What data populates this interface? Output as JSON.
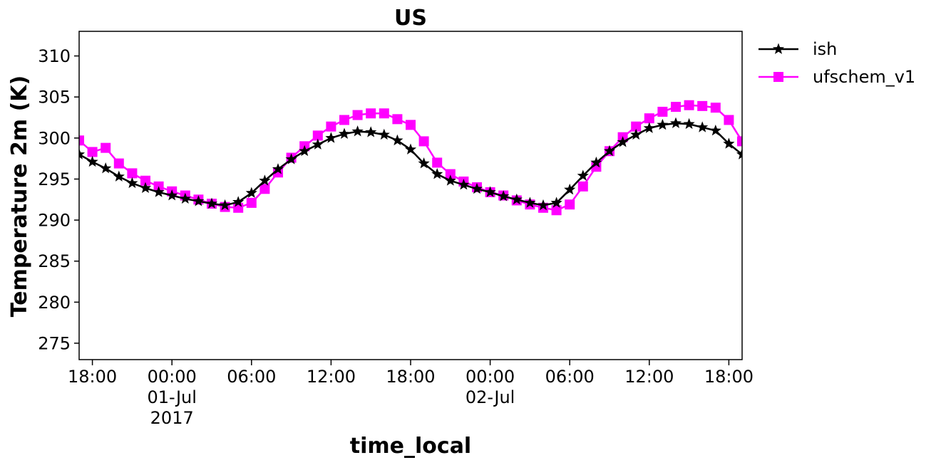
{
  "chart_data": {
    "type": "line",
    "title": "US",
    "xlabel": "time_local",
    "ylabel": "Temperature 2m (K)",
    "ylim": [
      273,
      313
    ],
    "y_ticks": [
      275,
      280,
      285,
      290,
      295,
      300,
      305,
      310
    ],
    "xlim": [
      "2017-06-30T17:00",
      "2017-07-02T19:00"
    ],
    "x_ticks": [
      {
        "time": "2017-06-30T18:00",
        "label": [
          "18:00"
        ]
      },
      {
        "time": "2017-07-01T00:00",
        "label": [
          "00:00",
          "01-Jul",
          "2017"
        ]
      },
      {
        "time": "2017-07-01T06:00",
        "label": [
          "06:00"
        ]
      },
      {
        "time": "2017-07-01T12:00",
        "label": [
          "12:00"
        ]
      },
      {
        "time": "2017-07-01T18:00",
        "label": [
          "18:00"
        ]
      },
      {
        "time": "2017-07-02T00:00",
        "label": [
          "00:00",
          "02-Jul"
        ]
      },
      {
        "time": "2017-07-02T06:00",
        "label": [
          "06:00"
        ]
      },
      {
        "time": "2017-07-02T12:00",
        "label": [
          "12:00"
        ]
      },
      {
        "time": "2017-07-02T18:00",
        "label": [
          "18:00"
        ]
      }
    ],
    "x": [
      "2017-06-30T17:00",
      "2017-06-30T18:00",
      "2017-06-30T19:00",
      "2017-06-30T20:00",
      "2017-06-30T21:00",
      "2017-06-30T22:00",
      "2017-06-30T23:00",
      "2017-07-01T00:00",
      "2017-07-01T01:00",
      "2017-07-01T02:00",
      "2017-07-01T03:00",
      "2017-07-01T04:00",
      "2017-07-01T05:00",
      "2017-07-01T06:00",
      "2017-07-01T07:00",
      "2017-07-01T08:00",
      "2017-07-01T09:00",
      "2017-07-01T10:00",
      "2017-07-01T11:00",
      "2017-07-01T12:00",
      "2017-07-01T13:00",
      "2017-07-01T14:00",
      "2017-07-01T15:00",
      "2017-07-01T16:00",
      "2017-07-01T17:00",
      "2017-07-01T18:00",
      "2017-07-01T19:00",
      "2017-07-01T20:00",
      "2017-07-01T21:00",
      "2017-07-01T22:00",
      "2017-07-01T23:00",
      "2017-07-02T00:00",
      "2017-07-02T01:00",
      "2017-07-02T02:00",
      "2017-07-02T03:00",
      "2017-07-02T04:00",
      "2017-07-02T05:00",
      "2017-07-02T06:00",
      "2017-07-02T07:00",
      "2017-07-02T08:00",
      "2017-07-02T09:00",
      "2017-07-02T10:00",
      "2017-07-02T11:00",
      "2017-07-02T12:00",
      "2017-07-02T13:00",
      "2017-07-02T14:00",
      "2017-07-02T15:00",
      "2017-07-02T16:00",
      "2017-07-02T17:00",
      "2017-07-02T18:00",
      "2017-07-02T19:00"
    ],
    "series": [
      {
        "name": "ish",
        "color": "#000000",
        "marker": "star",
        "values": [
          298.0,
          297.1,
          296.3,
          295.3,
          294.5,
          293.9,
          293.4,
          293.0,
          292.6,
          292.3,
          292.0,
          291.8,
          292.2,
          293.3,
          294.8,
          296.2,
          297.4,
          298.4,
          299.2,
          300.0,
          300.5,
          300.8,
          300.7,
          300.4,
          299.7,
          298.6,
          296.9,
          295.6,
          294.8,
          294.3,
          293.8,
          293.4,
          292.9,
          292.5,
          292.1,
          291.8,
          292.1,
          293.7,
          295.4,
          297.0,
          298.4,
          299.5,
          300.4,
          301.2,
          301.6,
          301.8,
          301.7,
          301.3,
          300.9,
          299.3,
          298.0
        ]
      },
      {
        "name": "ufschem_v1",
        "color": "#ff00ff",
        "marker": "square",
        "values": [
          299.7,
          298.3,
          298.8,
          296.9,
          295.7,
          294.8,
          294.1,
          293.5,
          293.0,
          292.5,
          292.0,
          291.6,
          291.5,
          292.1,
          293.8,
          295.8,
          297.6,
          299.0,
          300.3,
          301.4,
          302.2,
          302.8,
          303.0,
          303.0,
          302.3,
          301.6,
          299.6,
          297.0,
          295.6,
          294.7,
          294.0,
          293.4,
          293.0,
          292.4,
          291.9,
          291.5,
          291.2,
          291.9,
          294.1,
          296.5,
          298.4,
          300.1,
          301.4,
          302.4,
          303.2,
          303.8,
          304.0,
          303.9,
          303.7,
          302.2,
          299.6
        ]
      }
    ],
    "legend": {
      "placement": "outside-top-right",
      "entries": [
        "ish",
        "ufschem_v1"
      ]
    },
    "grid": false
  }
}
